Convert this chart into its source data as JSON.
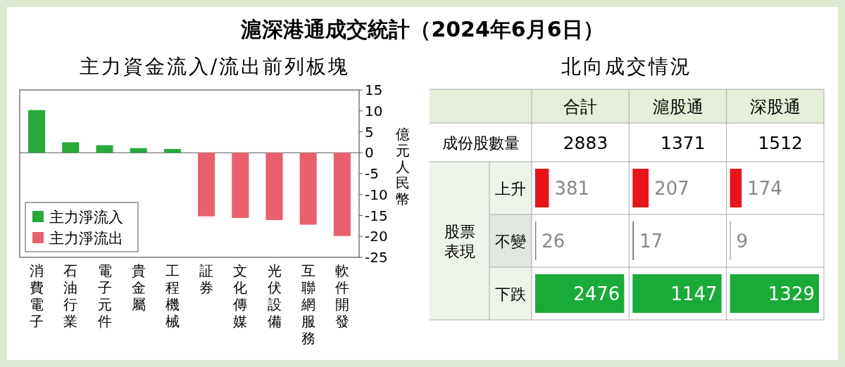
{
  "chart_data": [
    {
      "type": "bar",
      "title": "滬深港通成交統計（2024年6月6日）",
      "subtitle": "主力資金流入/流出前列板塊",
      "ylabel": "億元人民幣",
      "categories": [
        "消費電子",
        "石油行業",
        "電子元件",
        "貴金屬",
        "工程機械",
        "証券",
        "文化傳媒",
        "光伏設備",
        "互聯網服務",
        "軟件開發"
      ],
      "series": [
        {
          "name": "主力淨流入",
          "color": "#2aa83a",
          "values": [
            10.2,
            2.5,
            1.8,
            1.1,
            0.9,
            null,
            null,
            null,
            null,
            null
          ]
        },
        {
          "name": "主力淨流出",
          "color": "#e8606e",
          "values": [
            null,
            null,
            null,
            null,
            null,
            -15.2,
            -15.6,
            -16.1,
            -17.2,
            -19.9
          ]
        }
      ],
      "ylim": [
        -25,
        15
      ],
      "yticks": [
        15,
        10,
        5,
        0,
        -5,
        -10,
        -15,
        -20,
        -25
      ],
      "legend": "bottom left"
    },
    {
      "type": "other",
      "title": "北向成交情況",
      "annotations": [
        "成份股數量",
        "股票表現"
      ]
    },
    {
      "type": "bar",
      "orientation": "horizontal",
      "title": "合計",
      "categories": [
        "上升",
        "不變",
        "下跌"
      ],
      "values": [
        381,
        26,
        2476
      ],
      "colors": [
        "#e8141b",
        "#777777",
        "#1aaa3a"
      ],
      "data_labels": true,
      "annotations": [
        "2883"
      ]
    },
    {
      "type": "bar",
      "orientation": "horizontal",
      "title": "滬股通",
      "categories": [
        null,
        null,
        null
      ],
      "values": [
        207,
        17,
        1147
      ],
      "colors": [
        "#e8141b",
        "#777777",
        "#1aaa3a"
      ],
      "data_labels": true,
      "annotations": [
        "1371"
      ]
    },
    {
      "type": "bar",
      "orientation": "horizontal",
      "title": "深股通",
      "categories": [
        null,
        null,
        null
      ],
      "values": [
        174,
        9,
        1329
      ],
      "colors": [
        "#e8141b",
        "#777777",
        "#1aaa3a"
      ],
      "data_labels": true,
      "annotations": [
        "1512"
      ]
    }
  ]
}
